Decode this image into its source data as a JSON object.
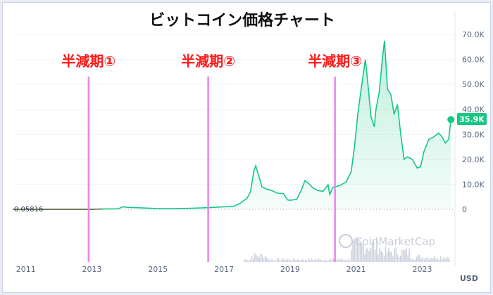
{
  "chart_data": {
    "type": "area",
    "title": "ビットコイン価格チャート",
    "x_ticks": [
      "2011",
      "2013",
      "2015",
      "2017",
      "2019",
      "2021",
      "2023"
    ],
    "y_ticks": [
      "70.0K",
      "60.0K",
      "50.0K",
      "40.0K",
      "30.0K",
      "20.0K",
      "10.0K",
      "0"
    ],
    "y_unit": "USD",
    "ylim": [
      0,
      70000
    ],
    "xlim": [
      2010.6,
      2023.95
    ],
    "start_label": "0.05816",
    "start_value": 0.05816,
    "current_label": "35.9K",
    "current_value": 35900,
    "halvings": [
      {
        "label": "半減期①",
        "date": 2012.9
      },
      {
        "label": "半減期②",
        "date": 2016.52
      },
      {
        "label": "半減期③",
        "date": 2020.36
      }
    ],
    "watermark": "CoinMarketCap",
    "series": [
      {
        "x": [
          2010.6,
          2011.5,
          2012.0,
          2012.5,
          2013.0,
          2013.3,
          2013.8,
          2013.92,
          2014.1,
          2014.5,
          2015.0,
          2015.5,
          2016.0,
          2016.5,
          2017.0,
          2017.3,
          2017.5,
          2017.7,
          2017.8,
          2017.9,
          2017.96,
          2018.05,
          2018.15,
          2018.3,
          2018.45,
          2018.6,
          2018.8,
          2018.92,
          2019.0,
          2019.2,
          2019.35,
          2019.45,
          2019.55,
          2019.7,
          2019.85,
          2020.0,
          2020.15,
          2020.2,
          2020.3,
          2020.5,
          2020.7,
          2020.85,
          2020.95,
          2021.05,
          2021.15,
          2021.28,
          2021.35,
          2021.45,
          2021.55,
          2021.6,
          2021.7,
          2021.8,
          2021.86,
          2021.95,
          2022.05,
          2022.15,
          2022.25,
          2022.35,
          2022.45,
          2022.55,
          2022.7,
          2022.85,
          2022.95,
          2023.05,
          2023.2,
          2023.35,
          2023.5,
          2023.6,
          2023.7,
          2023.8,
          2023.87
        ],
        "y": [
          0.06,
          1,
          5,
          8,
          13,
          100,
          200,
          1000,
          800,
          600,
          250,
          250,
          430,
          650,
          1000,
          1200,
          2500,
          4500,
          7000,
          15000,
          17500,
          13500,
          9000,
          8000,
          7500,
          6500,
          6300,
          3800,
          3600,
          4000,
          8000,
          11500,
          10500,
          8500,
          7500,
          7200,
          9800,
          6000,
          8800,
          9500,
          11000,
          15000,
          25000,
          38000,
          48000,
          60000,
          51000,
          37000,
          33000,
          40000,
          47000,
          61000,
          67500,
          48000,
          46000,
          38000,
          42000,
          30000,
          20000,
          21000,
          20000,
          16500,
          17000,
          23000,
          28000,
          29000,
          30500,
          29000,
          26500,
          28000,
          35900
        ]
      }
    ],
    "volume_note": "volume bars shown as grey histogram at bottom"
  }
}
